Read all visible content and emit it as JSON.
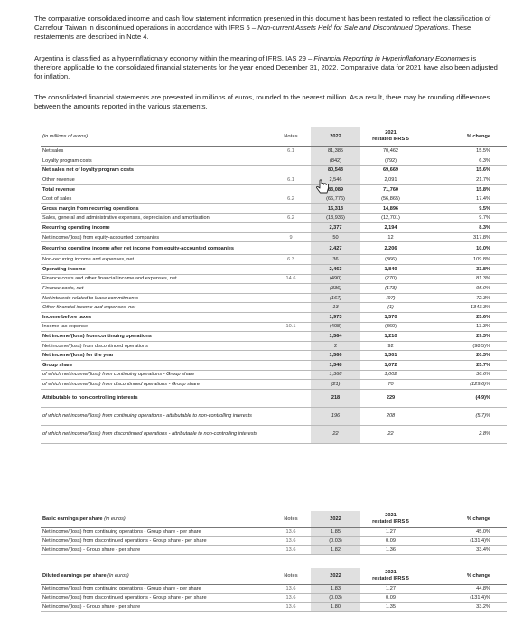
{
  "paragraphs": {
    "p1_a": "The comparative consolidated income and cash flow statement information presented in this document has been restated to reflect the classification of Carrefour Taiwan in discontinued operations in accordance with IFRS 5 – ",
    "p1_b": "Non-current Assets Held for Sale and Discontinued Operations",
    "p1_c": ". These restatements are described in Note 4.",
    "p2_a": "Argentina is classified as a hyperinflationary economy within the meaning of IFRS. IAS 29 – ",
    "p2_b": "Financial Reporting in Hyperinflationary Economies",
    "p2_c": " is therefore applicable to the consolidated financial statements for the year ended December 31, 2022. Comparative data for 2021 have also been adjusted for inflation.",
    "p3": "The consolidated financial statements are presented in millions of euros, rounded to the nearest million. As a result, there may be rounding differences between the amounts reported in the various statements."
  },
  "main_table": {
    "header": {
      "label": "(in millions of euros)",
      "notes": "Notes",
      "y2022": "2022",
      "y2021_l1": "2021",
      "y2021_l2": "restated IFRS 5",
      "change": "% change"
    },
    "rows": [
      {
        "label": "Net sales",
        "note": "6.1",
        "v22": "81,385",
        "v21": "70,462",
        "chg": "15.5%",
        "style": ""
      },
      {
        "label": "Loyalty program costs",
        "note": "",
        "v22": "(842)",
        "v21": "(792)",
        "chg": "6.3%",
        "style": ""
      },
      {
        "label": "Net sales net of loyalty program costs",
        "note": "",
        "v22": "80,543",
        "v21": "69,669",
        "chg": "15.6%",
        "style": "b"
      },
      {
        "label": "Other revenue",
        "note": "6.1",
        "v22": "2,546",
        "v21": "2,091",
        "chg": "21.7%",
        "style": ""
      },
      {
        "label": "Total revenue",
        "note": "",
        "v22": "83,089",
        "v21": "71,760",
        "chg": "15.8%",
        "style": "b"
      },
      {
        "label": "Cost of sales",
        "note": "6.2",
        "v22": "(66,776)",
        "v21": "(56,865)",
        "chg": "17.4%",
        "style": ""
      },
      {
        "label": "Gross margin from recurring operations",
        "note": "",
        "v22": "16,313",
        "v21": "14,896",
        "chg": "9.5%",
        "style": "b"
      },
      {
        "label": "Sales, general and administrative expenses, depreciation and amortisation",
        "note": "6.2",
        "v22": "(13,936)",
        "v21": "(12,701)",
        "chg": "9.7%",
        "style": ""
      },
      {
        "label": "Recurring operating income",
        "note": "",
        "v22": "2,377",
        "v21": "2,194",
        "chg": "8.3%",
        "style": "b"
      },
      {
        "label": "Net income/(loss) from equity-accounted companies",
        "note": "9",
        "v22": "50",
        "v21": "12",
        "chg": "317.8%",
        "style": ""
      },
      {
        "label": "Recurring operating income after net income from equity-accounted companies",
        "note": "",
        "v22": "2,427",
        "v21": "2,206",
        "chg": "10.0%",
        "style": "b two"
      },
      {
        "label": "Non-recurring income and expenses, net",
        "note": "6.3",
        "v22": "36",
        "v21": "(366)",
        "chg": "109.8%",
        "style": ""
      },
      {
        "label": "Operating income",
        "note": "",
        "v22": "2,463",
        "v21": "1,840",
        "chg": "33.8%",
        "style": "b"
      },
      {
        "label": "Finance costs and other financial income and expenses, net",
        "note": "14.6",
        "v22": "(490)",
        "v21": "(270)",
        "chg": "81.3%",
        "style": ""
      },
      {
        "label": "Finance costs, net",
        "note": "",
        "v22": "(336)",
        "v21": "(173)",
        "chg": "95.0%",
        "style": "it"
      },
      {
        "label": "Net interests related to lease commitments",
        "note": "",
        "v22": "(167)",
        "v21": "(97)",
        "chg": "72.3%",
        "style": "it"
      },
      {
        "label": "Other financial income and expenses, net",
        "note": "",
        "v22": "13",
        "v21": "(1)",
        "chg": "1343.3%",
        "style": "it"
      },
      {
        "label": "Income before taxes",
        "note": "",
        "v22": "1,973",
        "v21": "1,570",
        "chg": "25.6%",
        "style": "b"
      },
      {
        "label": "Income tax expense",
        "note": "10.1",
        "v22": "(408)",
        "v21": "(360)",
        "chg": "13.3%",
        "style": ""
      },
      {
        "label": "Net income/(loss) from continuing operations",
        "note": "",
        "v22": "1,564",
        "v21": "1,210",
        "chg": "29.3%",
        "style": "b"
      },
      {
        "label": "Net income/(loss) from discontinued operations",
        "note": "",
        "v22": "2",
        "v21": "92",
        "chg": "(98.5)%",
        "style": ""
      },
      {
        "label": "Net income/(loss) for the year",
        "note": "",
        "v22": "1,566",
        "v21": "1,301",
        "chg": "20.3%",
        "style": "b"
      },
      {
        "label": "Group share",
        "note": "",
        "v22": "1,348",
        "v21": "1,072",
        "chg": "25.7%",
        "style": "b"
      },
      {
        "label": "of which net income/(loss) from continuing operations - Group share",
        "note": "",
        "v22": "1,368",
        "v21": "1,002",
        "chg": "36.6%",
        "style": "it"
      },
      {
        "label": "of which net income/(loss) from discontinued operations - Group share",
        "note": "",
        "v22": "(21)",
        "v21": "70",
        "chg": "(129.6)%",
        "style": "it"
      },
      {
        "label": "Attributable to non-controlling interests",
        "note": "",
        "v22": "218",
        "v21": "229",
        "chg": "(4.9)%",
        "style": "b tall"
      },
      {
        "label": "of which net income/(loss) from continuing operations - attributable to non-controlling interests",
        "note": "",
        "v22": "196",
        "v21": "208",
        "chg": "(5.7)%",
        "style": "it two tall"
      },
      {
        "label": "of which net income/(loss) from discontinued operations - attributable to non-controlling interests",
        "note": "",
        "v22": "22",
        "v21": "22",
        "chg": "2.8%",
        "style": "it two tall"
      }
    ]
  },
  "basic_eps": {
    "header": {
      "label": "Basic earnings per share",
      "unit": " (in euros)",
      "notes": "Notes",
      "y2022": "2022",
      "y2021_l1": "2021",
      "y2021_l2": "restated IFRS 5",
      "change": "% change"
    },
    "rows": [
      {
        "label": "Net income/(loss) from continuing operations - Group share - per share",
        "note": "13.6",
        "v22": "1.85",
        "v21": "1.27",
        "chg": "45.0%"
      },
      {
        "label": "Net income/(loss) from discontinued operations - Group share - per share",
        "note": "13.6",
        "v22": "(0.03)",
        "v21": "0.09",
        "chg": "(131.4)%"
      },
      {
        "label": "Net income/(loss) - Group share - per share",
        "note": "13.6",
        "v22": "1.82",
        "v21": "1.36",
        "chg": "33.4%"
      }
    ]
  },
  "diluted_eps": {
    "header": {
      "label": "Diluted earnings per share",
      "unit": " (in euros)",
      "notes": "Notes",
      "y2022": "2022",
      "y2021_l1": "2021",
      "y2021_l2": "restated IFRS 5",
      "change": "% change"
    },
    "rows": [
      {
        "label": "Net income/(loss) from continuing operations - Group share - per share",
        "note": "13.6",
        "v22": "1.83",
        "v21": "1.27",
        "chg": "44.8%"
      },
      {
        "label": "Net income/(loss) from discontinued operations - Group share - per share",
        "note": "13.6",
        "v22": "(0.03)",
        "v21": "0.09",
        "chg": "(131.4)%"
      },
      {
        "label": "Net income/(loss) - Group share - per share",
        "note": "13.6",
        "v22": "1.80",
        "v21": "1.35",
        "chg": "33.2%"
      }
    ]
  },
  "cursor": {
    "icon": "hand-pointer-icon"
  }
}
